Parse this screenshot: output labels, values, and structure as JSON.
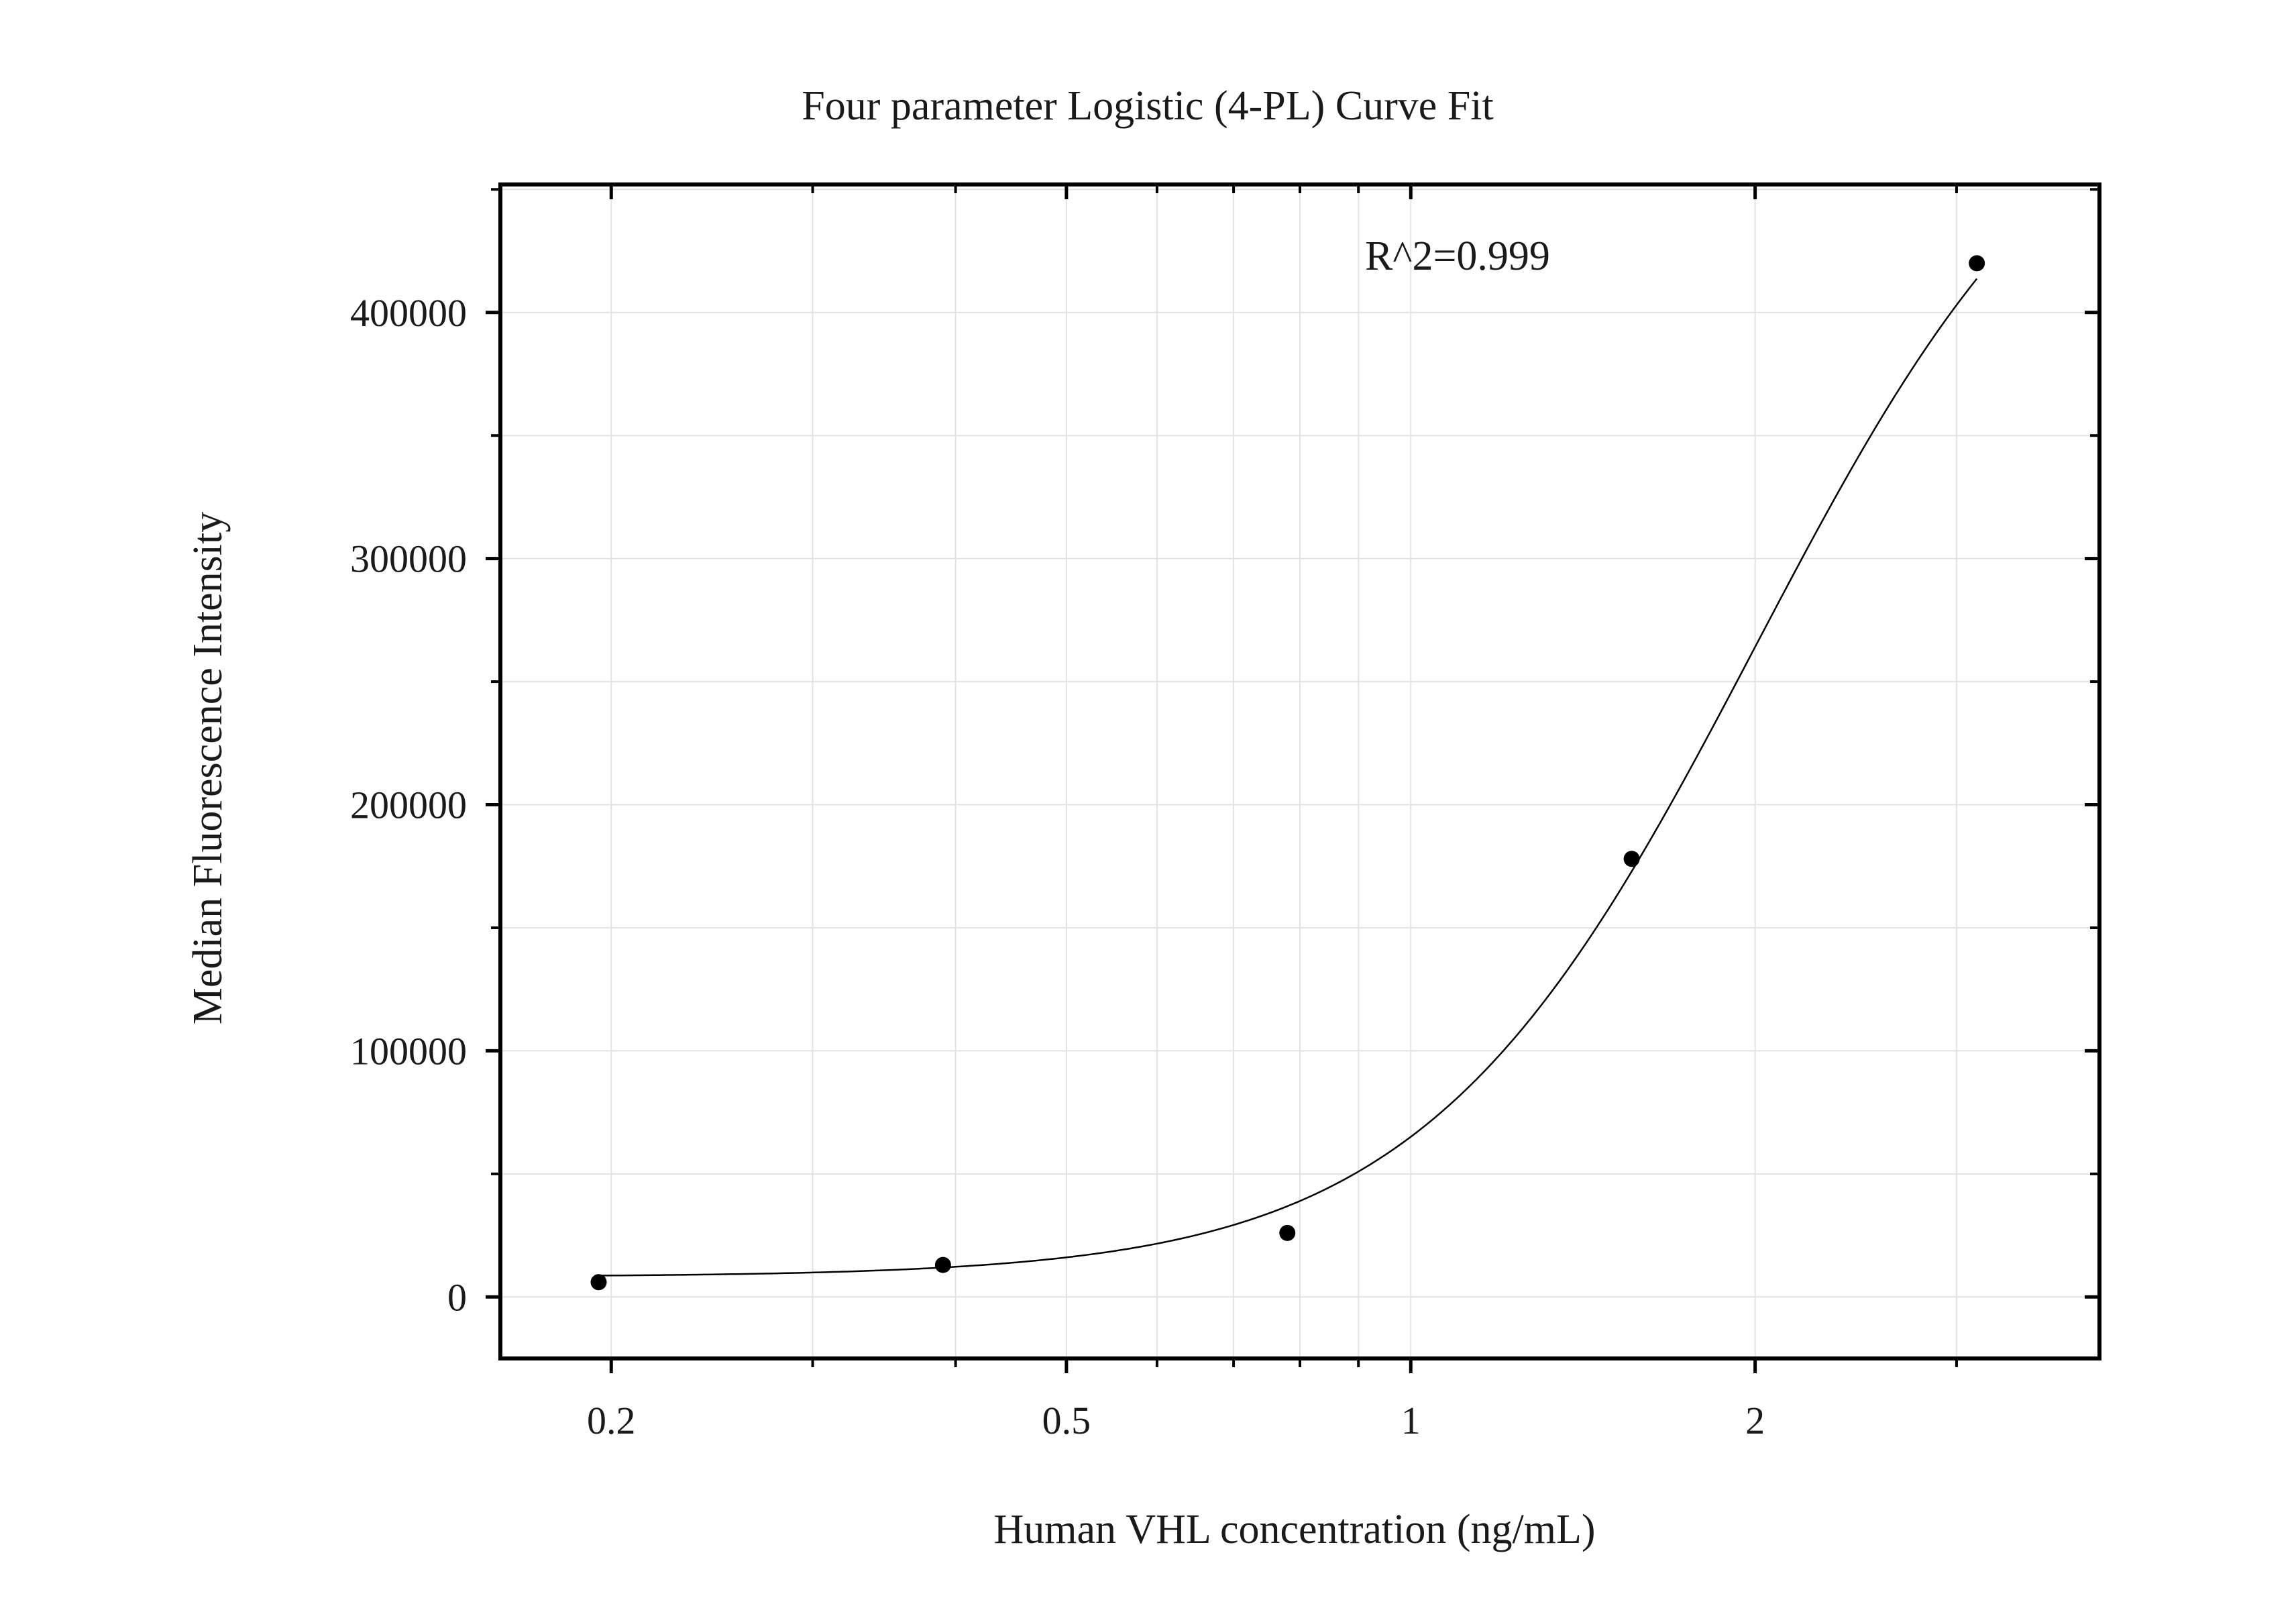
{
  "chart_data": {
    "type": "scatter",
    "title": "Four parameter Logistic (4-PL) Curve Fit",
    "xlabel": "Human VHL concentration (ng/mL)",
    "ylabel": "Median Fluorescence Intensity",
    "x_scale": "log",
    "xlim": [
      0.16,
      4.0
    ],
    "ylim": [
      -25000,
      452000
    ],
    "x_ticks": [
      {
        "value": 0.2,
        "label": "0.2"
      },
      {
        "value": 0.5,
        "label": "0.5"
      },
      {
        "value": 1,
        "label": "1"
      },
      {
        "value": 2,
        "label": "2"
      }
    ],
    "x_minor_ticks": [
      0.3,
      0.4,
      0.6,
      0.7,
      0.8,
      0.9,
      3
    ],
    "y_ticks": [
      {
        "value": 0,
        "label": "0"
      },
      {
        "value": 100000,
        "label": "100000"
      },
      {
        "value": 200000,
        "label": "200000"
      },
      {
        "value": 300000,
        "label": "300000"
      },
      {
        "value": 400000,
        "label": "400000"
      }
    ],
    "y_minor_ticks": [
      50000,
      150000,
      250000,
      350000,
      450000
    ],
    "grid": true,
    "annotation": "R^2=0.999",
    "points": [
      {
        "x": 0.195,
        "y": 6000
      },
      {
        "x": 0.39,
        "y": 13000
      },
      {
        "x": 0.78,
        "y": 26000
      },
      {
        "x": 1.56,
        "y": 178000
      },
      {
        "x": 3.125,
        "y": 420000
      }
    ],
    "fit": {
      "model": "4-PL",
      "bottom": 8200,
      "top": 520000,
      "ec50": 2.0,
      "hill": 3.0,
      "x_range": [
        0.195,
        3.125
      ]
    },
    "colors": {
      "points": "#000000",
      "curve": "#000000",
      "grid": "#e2e2e2",
      "frame": "#000000"
    }
  }
}
